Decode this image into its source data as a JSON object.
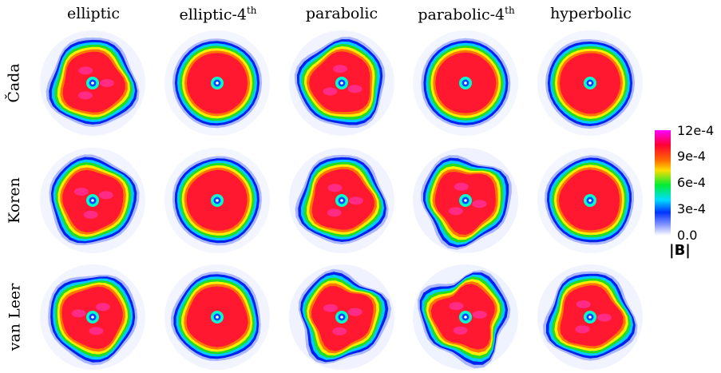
{
  "columns": [
    {
      "name": "elliptic",
      "suffix": ""
    },
    {
      "name": "elliptic-4",
      "suffix": "th"
    },
    {
      "name": "parabolic",
      "suffix": ""
    },
    {
      "name": "parabolic-4",
      "suffix": "th"
    },
    {
      "name": "hyperbolic",
      "suffix": ""
    }
  ],
  "rows": [
    "Čada",
    "Koren",
    "van Leer"
  ],
  "colorbar": {
    "ticks": [
      "12e-4",
      "9e-4",
      "6e-4",
      "3e-4",
      "0.0"
    ],
    "label": "|B|",
    "colors": [
      "#ff00ff",
      "#ff0033",
      "#ffcc00",
      "#00ee33",
      "#00ddff",
      "#0033ff",
      "#ffffff"
    ]
  },
  "panel_colors": {
    "ring_outer": "#0022ee",
    "ring_cyan": "#00ccff",
    "ring_green": "#22dd22",
    "ring_yellow": "#ffee00",
    "body": "#ff1830",
    "core": "#0044ff",
    "core_halo": "#00ffcc",
    "spot": "#ff33aa"
  }
}
